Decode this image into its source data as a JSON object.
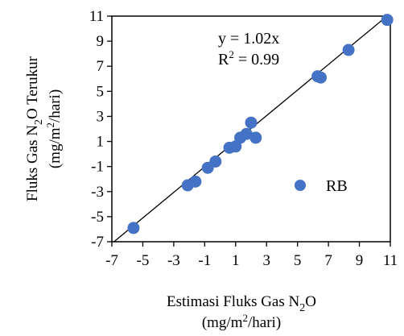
{
  "chart_data": {
    "type": "scatter",
    "x_title": {
      "main": "Estimasi Fluks Gas N",
      "sub": "2",
      "tail": "O",
      "line2": "(mg/m",
      "line2_sup": "2",
      "line2_tail": "/hari)"
    },
    "y_title": {
      "main": "Fluks Gas N",
      "sub": "2",
      "tail": "O Terukur",
      "line2": "(mg/m",
      "line2_sup": "2",
      "line2_tail": "/hari)"
    },
    "xlim": [
      -7,
      11
    ],
    "ylim": [
      -7,
      11
    ],
    "xticks": [
      "-7",
      "-5",
      "-3",
      "-1",
      "1",
      "3",
      "5",
      "7",
      "9",
      "11"
    ],
    "yticks": [
      "-7",
      "-5",
      "-3",
      "-1",
      "1",
      "3",
      "5",
      "7",
      "9",
      "11"
    ],
    "grid": false,
    "legend_position": "center-right",
    "series": [
      {
        "name": "RB",
        "color": "#4472C4",
        "x": [
          -5.6,
          -2.1,
          -1.6,
          -0.8,
          -0.3,
          0.6,
          1.0,
          1.3,
          1.7,
          2.0,
          2.3,
          6.3,
          6.5,
          8.3,
          10.8
        ],
        "y": [
          -5.9,
          -2.5,
          -2.2,
          -1.1,
          -0.6,
          0.5,
          0.6,
          1.3,
          1.6,
          2.5,
          1.3,
          6.2,
          6.1,
          8.3,
          10.7
        ]
      }
    ],
    "trendline": {
      "slope": 1.02,
      "intercept": 0,
      "color": "#000000"
    },
    "annotations": {
      "equation": "y = 1.02x",
      "r2_base": "R",
      "r2_sup": "2",
      "r2_tail": " = 0.99"
    }
  }
}
